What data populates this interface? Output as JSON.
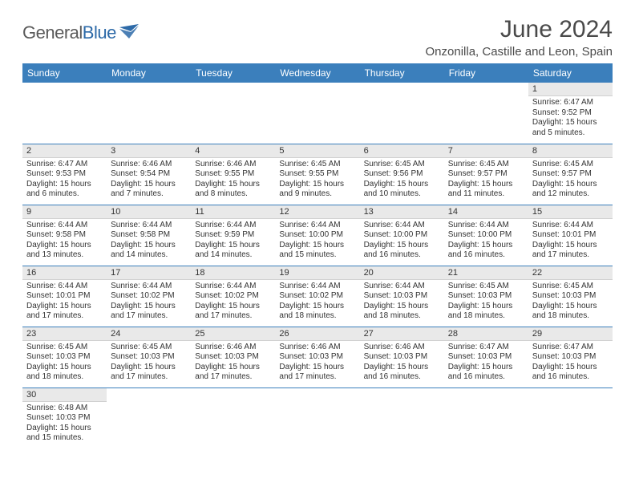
{
  "brand": {
    "name_a": "General",
    "name_b": "Blue"
  },
  "title": "June 2024",
  "location": "Onzonilla, Castille and Leon, Spain",
  "colors": {
    "header_bg": "#3b7fbc",
    "header_text": "#ffffff",
    "daynum_bg": "#e9e9e9",
    "rule": "#3b7fbc",
    "logo_gray": "#5a5a5a",
    "logo_blue": "#2d6aa8"
  },
  "weekdays": [
    "Sunday",
    "Monday",
    "Tuesday",
    "Wednesday",
    "Thursday",
    "Friday",
    "Saturday"
  ],
  "rows": [
    [
      null,
      null,
      null,
      null,
      null,
      null,
      {
        "n": "1",
        "sr": "6:47 AM",
        "ss": "9:52 PM",
        "dl": "15 hours and 5 minutes."
      }
    ],
    [
      {
        "n": "2",
        "sr": "6:47 AM",
        "ss": "9:53 PM",
        "dl": "15 hours and 6 minutes."
      },
      {
        "n": "3",
        "sr": "6:46 AM",
        "ss": "9:54 PM",
        "dl": "15 hours and 7 minutes."
      },
      {
        "n": "4",
        "sr": "6:46 AM",
        "ss": "9:55 PM",
        "dl": "15 hours and 8 minutes."
      },
      {
        "n": "5",
        "sr": "6:45 AM",
        "ss": "9:55 PM",
        "dl": "15 hours and 9 minutes."
      },
      {
        "n": "6",
        "sr": "6:45 AM",
        "ss": "9:56 PM",
        "dl": "15 hours and 10 minutes."
      },
      {
        "n": "7",
        "sr": "6:45 AM",
        "ss": "9:57 PM",
        "dl": "15 hours and 11 minutes."
      },
      {
        "n": "8",
        "sr": "6:45 AM",
        "ss": "9:57 PM",
        "dl": "15 hours and 12 minutes."
      }
    ],
    [
      {
        "n": "9",
        "sr": "6:44 AM",
        "ss": "9:58 PM",
        "dl": "15 hours and 13 minutes."
      },
      {
        "n": "10",
        "sr": "6:44 AM",
        "ss": "9:58 PM",
        "dl": "15 hours and 14 minutes."
      },
      {
        "n": "11",
        "sr": "6:44 AM",
        "ss": "9:59 PM",
        "dl": "15 hours and 14 minutes."
      },
      {
        "n": "12",
        "sr": "6:44 AM",
        "ss": "10:00 PM",
        "dl": "15 hours and 15 minutes."
      },
      {
        "n": "13",
        "sr": "6:44 AM",
        "ss": "10:00 PM",
        "dl": "15 hours and 16 minutes."
      },
      {
        "n": "14",
        "sr": "6:44 AM",
        "ss": "10:00 PM",
        "dl": "15 hours and 16 minutes."
      },
      {
        "n": "15",
        "sr": "6:44 AM",
        "ss": "10:01 PM",
        "dl": "15 hours and 17 minutes."
      }
    ],
    [
      {
        "n": "16",
        "sr": "6:44 AM",
        "ss": "10:01 PM",
        "dl": "15 hours and 17 minutes."
      },
      {
        "n": "17",
        "sr": "6:44 AM",
        "ss": "10:02 PM",
        "dl": "15 hours and 17 minutes."
      },
      {
        "n": "18",
        "sr": "6:44 AM",
        "ss": "10:02 PM",
        "dl": "15 hours and 17 minutes."
      },
      {
        "n": "19",
        "sr": "6:44 AM",
        "ss": "10:02 PM",
        "dl": "15 hours and 18 minutes."
      },
      {
        "n": "20",
        "sr": "6:44 AM",
        "ss": "10:03 PM",
        "dl": "15 hours and 18 minutes."
      },
      {
        "n": "21",
        "sr": "6:45 AM",
        "ss": "10:03 PM",
        "dl": "15 hours and 18 minutes."
      },
      {
        "n": "22",
        "sr": "6:45 AM",
        "ss": "10:03 PM",
        "dl": "15 hours and 18 minutes."
      }
    ],
    [
      {
        "n": "23",
        "sr": "6:45 AM",
        "ss": "10:03 PM",
        "dl": "15 hours and 18 minutes."
      },
      {
        "n": "24",
        "sr": "6:45 AM",
        "ss": "10:03 PM",
        "dl": "15 hours and 17 minutes."
      },
      {
        "n": "25",
        "sr": "6:46 AM",
        "ss": "10:03 PM",
        "dl": "15 hours and 17 minutes."
      },
      {
        "n": "26",
        "sr": "6:46 AM",
        "ss": "10:03 PM",
        "dl": "15 hours and 17 minutes."
      },
      {
        "n": "27",
        "sr": "6:46 AM",
        "ss": "10:03 PM",
        "dl": "15 hours and 16 minutes."
      },
      {
        "n": "28",
        "sr": "6:47 AM",
        "ss": "10:03 PM",
        "dl": "15 hours and 16 minutes."
      },
      {
        "n": "29",
        "sr": "6:47 AM",
        "ss": "10:03 PM",
        "dl": "15 hours and 16 minutes."
      }
    ],
    [
      {
        "n": "30",
        "sr": "6:48 AM",
        "ss": "10:03 PM",
        "dl": "15 hours and 15 minutes."
      },
      null,
      null,
      null,
      null,
      null,
      null
    ]
  ],
  "labels": {
    "sunrise": "Sunrise:",
    "sunset": "Sunset:",
    "daylight": "Daylight:"
  }
}
